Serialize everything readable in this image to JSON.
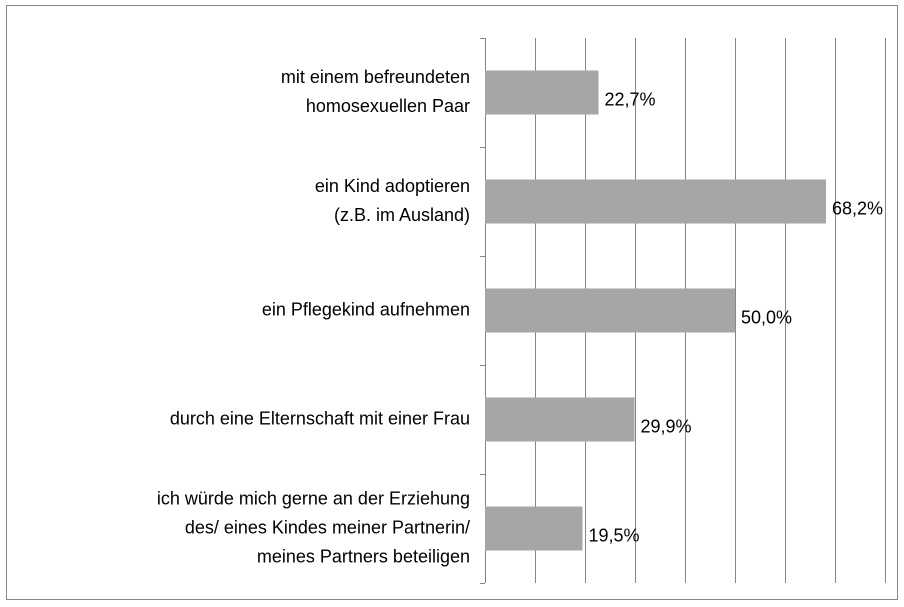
{
  "chart_data": {
    "type": "hbar",
    "categories": [
      [
        "mit einem befreundeten",
        "homosexuellen Paar"
      ],
      [
        "ein Kind adoptieren",
        "(z.B. im Ausland)"
      ],
      [
        "ein Pflegekind aufnehmen"
      ],
      [
        "durch eine Elternschaft mit einer Frau"
      ],
      [
        "ich würde mich gerne an der Erziehung",
        "des/ eines Kindes meiner Partnerin/",
        "meines Partners beteiligen"
      ]
    ],
    "values": [
      22.7,
      68.2,
      50.0,
      29.9,
      19.5
    ],
    "value_labels": [
      "22,7%",
      "68,2%",
      "50,0%",
      "29,9%",
      "19,5%"
    ],
    "color": "#a6a6a6",
    "xlim": [
      0,
      80
    ],
    "xticks": [
      0,
      10,
      20,
      30,
      40,
      50,
      60,
      70,
      80
    ],
    "grid": true
  }
}
